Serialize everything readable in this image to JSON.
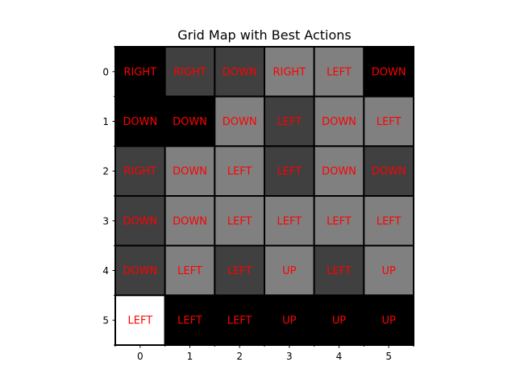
{
  "chart_data": {
    "type": "heatmap",
    "title": "Grid Map with Best Actions",
    "x_ticks": [
      "0",
      "1",
      "2",
      "3",
      "4",
      "5"
    ],
    "y_ticks": [
      "0",
      "1",
      "2",
      "3",
      "4",
      "5"
    ],
    "values": [
      [
        0.0,
        0.25,
        0.25,
        0.5,
        0.5,
        0.0
      ],
      [
        0.0,
        0.0,
        0.5,
        0.25,
        0.5,
        0.5
      ],
      [
        0.25,
        0.5,
        0.5,
        0.25,
        0.5,
        0.25
      ],
      [
        0.25,
        0.5,
        0.5,
        0.5,
        0.5,
        0.5
      ],
      [
        0.25,
        0.5,
        0.25,
        0.5,
        0.25,
        0.5
      ],
      [
        1.0,
        0.0,
        0.0,
        0.0,
        0.0,
        0.0
      ]
    ],
    "actions": [
      [
        "RIGHT",
        "RIGHT",
        "DOWN",
        "RIGHT",
        "LEFT",
        "DOWN"
      ],
      [
        "DOWN",
        "DOWN",
        "DOWN",
        "LEFT",
        "DOWN",
        "LEFT"
      ],
      [
        "RIGHT",
        "DOWN",
        "LEFT",
        "LEFT",
        "DOWN",
        "DOWN"
      ],
      [
        "DOWN",
        "DOWN",
        "LEFT",
        "LEFT",
        "LEFT",
        "LEFT"
      ],
      [
        "DOWN",
        "LEFT",
        "LEFT",
        "UP",
        "LEFT",
        "UP"
      ],
      [
        "LEFT",
        "LEFT",
        "LEFT",
        "UP",
        "UP",
        "UP"
      ]
    ],
    "colormap": "gray",
    "label_color": "#ff0000",
    "grid_line_color": "#000000"
  }
}
